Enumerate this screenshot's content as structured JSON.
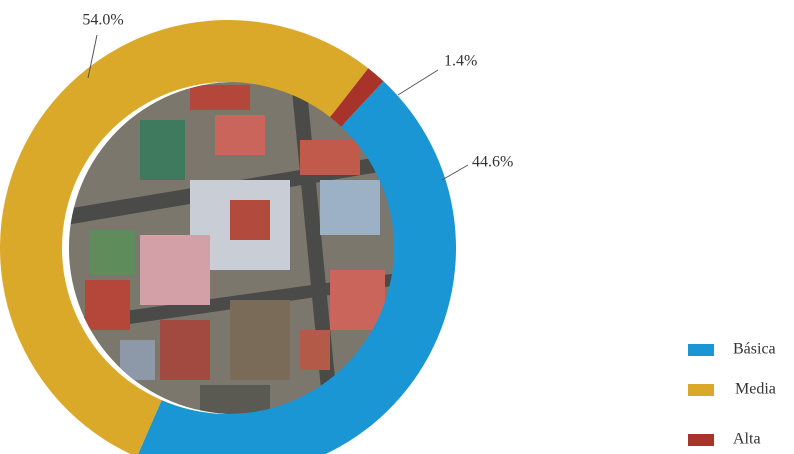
{
  "chart_data": {
    "type": "donut",
    "categories": [
      "Básica",
      "Media",
      "Alta"
    ],
    "values": [
      44.6,
      54.0,
      1.4
    ],
    "value_labels": [
      "44.6%",
      "54.0%",
      "1.4%"
    ],
    "colors": [
      "#1a96d4",
      "#dba92a",
      "#a8332a"
    ],
    "legend": "bottom-right"
  }
}
